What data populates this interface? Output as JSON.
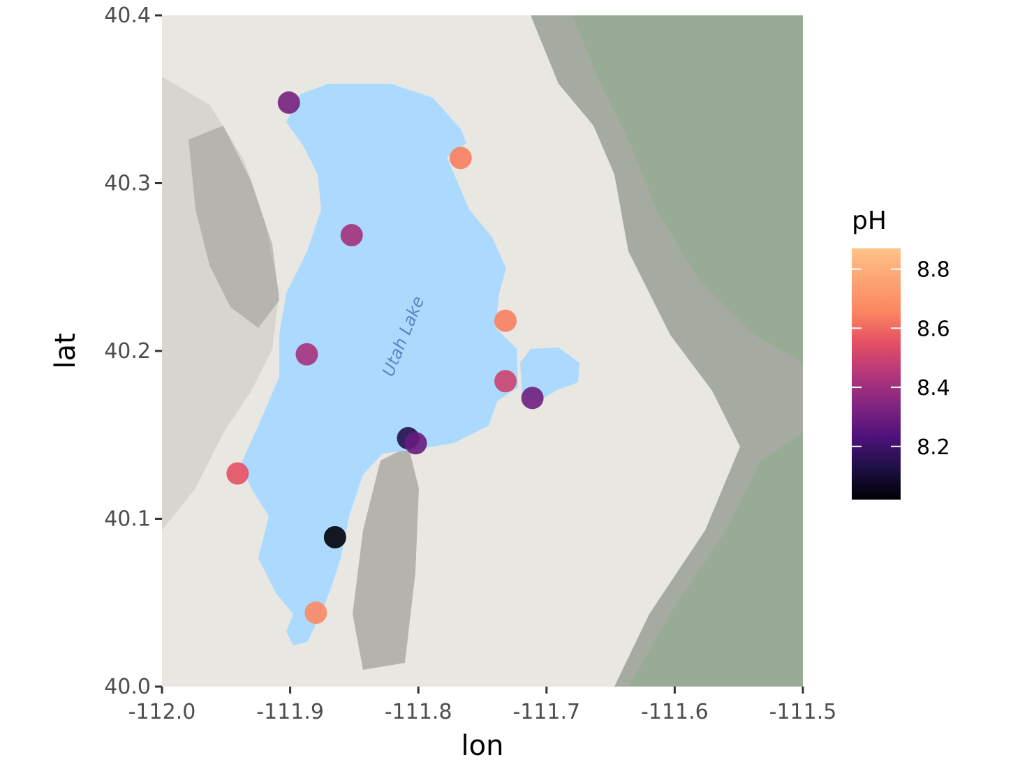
{
  "chart_data": {
    "type": "scatter",
    "xlabel": "lon",
    "ylabel": "lat",
    "xlim": [
      -112.0,
      -111.5
    ],
    "ylim": [
      40.0,
      40.4
    ],
    "x_ticks": [
      "-112.0",
      "-111.9",
      "-111.8",
      "-111.7",
      "-111.6",
      "-111.5"
    ],
    "x_tick_values": [
      -112.0,
      -111.9,
      -111.8,
      -111.7,
      -111.6,
      -111.5
    ],
    "y_ticks": [
      "40.0",
      "40.1",
      "40.2",
      "40.3",
      "40.4"
    ],
    "y_tick_values": [
      40.0,
      40.1,
      40.2,
      40.3,
      40.4
    ],
    "basemap_label": "Utah Lake",
    "color_variable": "pH",
    "color_scale": "magma",
    "color_range": [
      8.02,
      8.87
    ],
    "legend_ticks": [
      "8.2",
      "8.4",
      "8.6",
      "8.8"
    ],
    "legend_tick_values": [
      8.2,
      8.4,
      8.6,
      8.8
    ],
    "legend_position": "right",
    "grid": false,
    "points": [
      {
        "lon": -111.901,
        "lat": 40.348,
        "pH": 8.4
      },
      {
        "lon": -111.767,
        "lat": 40.315,
        "pH": 8.82
      },
      {
        "lon": -111.852,
        "lat": 40.269,
        "pH": 8.52
      },
      {
        "lon": -111.732,
        "lat": 40.218,
        "pH": 8.82
      },
      {
        "lon": -111.887,
        "lat": 40.198,
        "pH": 8.53
      },
      {
        "lon": -111.732,
        "lat": 40.182,
        "pH": 8.63
      },
      {
        "lon": -111.711,
        "lat": 40.172,
        "pH": 8.38
      },
      {
        "lon": -111.808,
        "lat": 40.148,
        "pH": 8.18
      },
      {
        "lon": -111.802,
        "lat": 40.145,
        "pH": 8.36
      },
      {
        "lon": -111.941,
        "lat": 40.127,
        "pH": 8.7
      },
      {
        "lon": -111.865,
        "lat": 40.089,
        "pH": 8.03
      },
      {
        "lon": -111.88,
        "lat": 40.044,
        "pH": 8.85
      }
    ]
  }
}
